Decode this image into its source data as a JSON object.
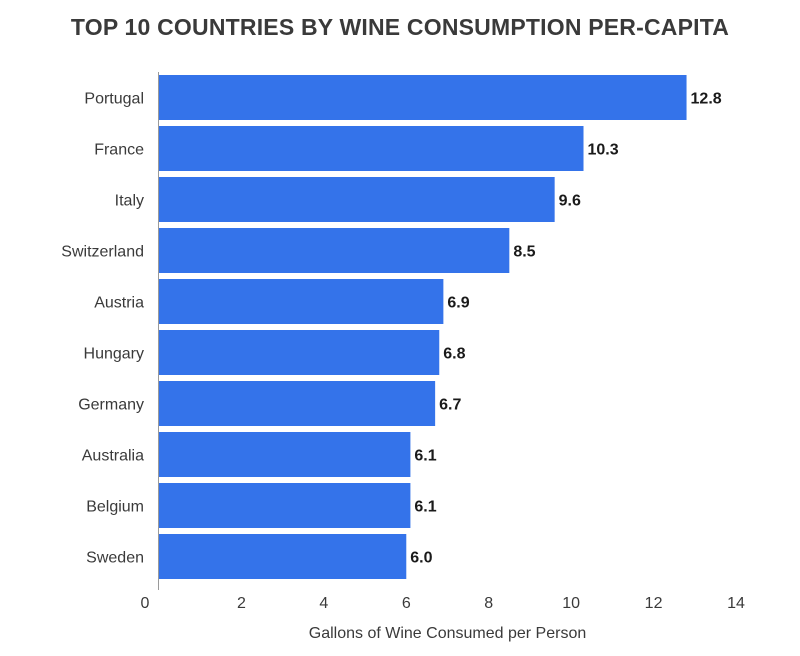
{
  "chart_data": {
    "type": "bar",
    "orientation": "horizontal",
    "title": "TOP 10 COUNTRIES BY WINE CONSUMPTION PER-CAPITA",
    "categories": [
      "Portugal",
      "France",
      "Italy",
      "Switzerland",
      "Austria",
      "Hungary",
      "Germany",
      "Australia",
      "Belgium",
      "Sweden"
    ],
    "values": [
      12.8,
      10.3,
      9.6,
      8.5,
      6.9,
      6.8,
      6.7,
      6.1,
      6.1,
      6.0
    ],
    "value_labels": [
      "12.8",
      "10.3",
      "9.6",
      "8.5",
      "6.9",
      "6.8",
      "6.7",
      "6.1",
      "6.1",
      "6.0"
    ],
    "xlabel": "Gallons of Wine Consumed per Person",
    "ylabel": "",
    "xlim": [
      0,
      14
    ],
    "xticks": [
      0,
      2,
      4,
      6,
      8,
      10,
      12,
      14
    ],
    "bar_color": "#3473EA",
    "grid": false,
    "legend": "none"
  }
}
